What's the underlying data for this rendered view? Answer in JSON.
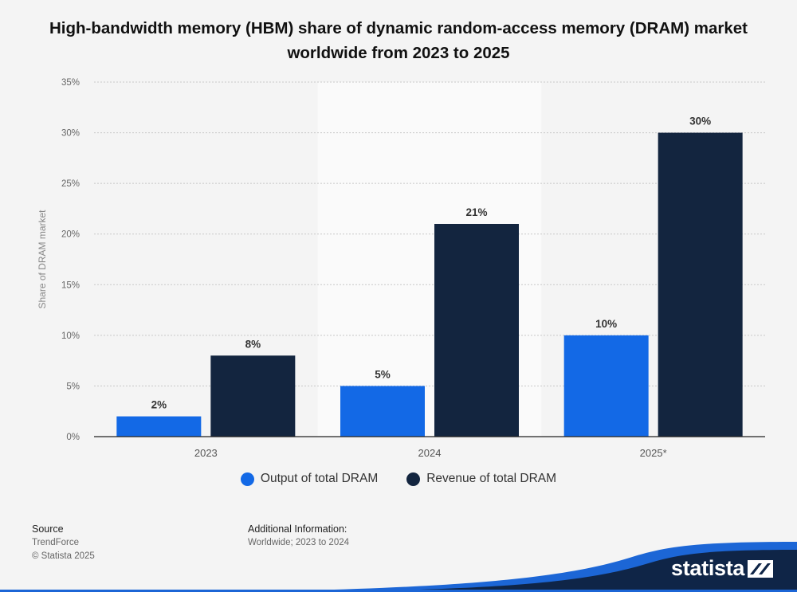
{
  "title": "High-bandwidth memory (HBM) share of dynamic random-access memory (DRAM) market worldwide from 2023 to 2025",
  "colors": {
    "output": "#1369e6",
    "revenue": "#13253f",
    "background": "#f4f4f4",
    "highlight": "#fafafa"
  },
  "chart_data": {
    "type": "bar",
    "title": "High-bandwidth memory (HBM) share of dynamic random-access memory (DRAM) market worldwide from 2023 to 2025",
    "ylabel": "Share of DRAM market",
    "xlabel": "",
    "categories": [
      "2023",
      "2024",
      "2025*"
    ],
    "series": [
      {
        "name": "Output of total DRAM",
        "values": [
          2,
          5,
          10
        ],
        "labels": [
          "2%",
          "5%",
          "10%"
        ]
      },
      {
        "name": "Revenue of total DRAM",
        "values": [
          8,
          21,
          30
        ],
        "labels": [
          "8%",
          "21%",
          "30%"
        ]
      }
    ],
    "ylim": [
      0,
      35
    ],
    "yticks": [
      0,
      5,
      10,
      15,
      20,
      25,
      30,
      35
    ],
    "ytick_labels": [
      "0%",
      "5%",
      "10%",
      "15%",
      "20%",
      "25%",
      "30%",
      "35%"
    ],
    "grid": true,
    "legend": "bottom-center"
  },
  "footer": {
    "source_heading": "Source",
    "source_lines": [
      "TrendForce",
      "© Statista 2025"
    ],
    "additional_heading": "Additional Information:",
    "additional_text": "Worldwide; 2023 to 2024"
  },
  "brand": {
    "name": "statista",
    "icon": "statista-logo-icon"
  }
}
